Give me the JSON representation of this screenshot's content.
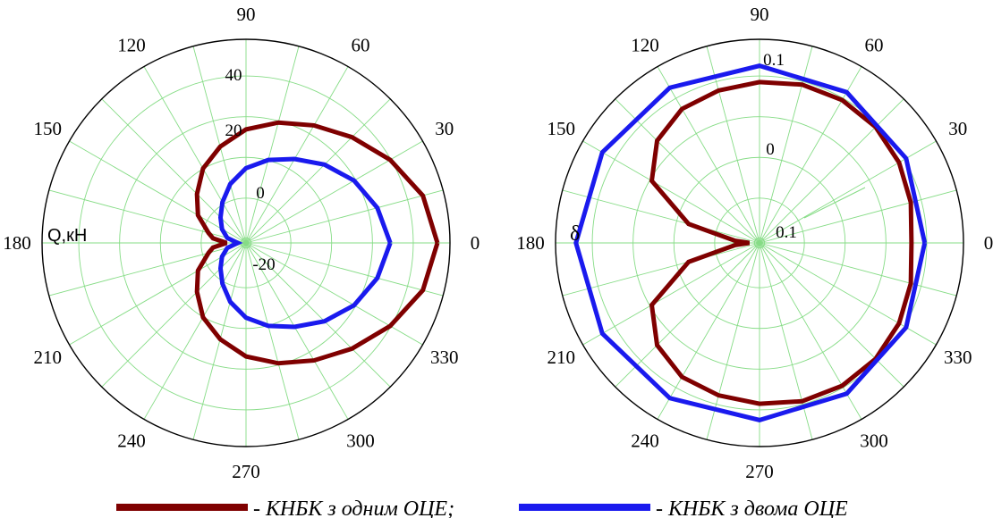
{
  "chart_data": [
    {
      "type": "line",
      "projection": "polar",
      "ylabel": "Q,кН",
      "angle_ticks": [
        "0",
        "30",
        "60",
        "90",
        "120",
        "150",
        "180",
        "210",
        "240",
        "270",
        "300",
        "330"
      ],
      "radial_tick_labels": [
        "-20",
        "0",
        "20",
        "40"
      ],
      "rlim": [
        -25,
        50
      ],
      "grid": true,
      "series": [
        {
          "name": "- КНБК з одним ОЦЕ;",
          "color": "#7f0000",
          "theta_deg": [
            0,
            15,
            30,
            45,
            60,
            75,
            90,
            105,
            120,
            135,
            150,
            165,
            172,
            180,
            188,
            195,
            210,
            225,
            240,
            255,
            270,
            285,
            300,
            315,
            330,
            345,
            360
          ],
          "r": [
            44,
            41,
            35,
            29,
            24,
            20,
            16,
            11,
            6,
            0,
            -5,
            -11,
            -13,
            -18,
            -13,
            -11,
            -5,
            0,
            6,
            11,
            16,
            20,
            24,
            29,
            35,
            41,
            44
          ]
        },
        {
          "name": "- КНБК з двома ОЦЕ",
          "color": "#1a1aee",
          "theta_deg": [
            0,
            15,
            30,
            45,
            60,
            75,
            90,
            105,
            120,
            135,
            150,
            165,
            180,
            195,
            210,
            225,
            240,
            255,
            270,
            285,
            300,
            315,
            330,
            345,
            360
          ],
          "r": [
            27,
            24,
            20,
            15,
            10,
            6,
            2,
            -3,
            -8,
            -12,
            -15,
            -18,
            -22,
            -18,
            -15,
            -12,
            -8,
            -3,
            2,
            6,
            10,
            15,
            20,
            24,
            27
          ]
        }
      ]
    },
    {
      "type": "line",
      "projection": "polar",
      "ylabel": "δ",
      "angle_ticks": [
        "0",
        "30",
        "60",
        "90",
        "120",
        "150",
        "180",
        "210",
        "240",
        "270",
        "300",
        "330"
      ],
      "radial_tick_labels": [
        "0.1",
        "0",
        "0.1"
      ],
      "grid": true,
      "series": [
        {
          "name": "- КНБК з одним ОЦЕ;",
          "color": "#7f0000",
          "theta_deg": [
            0,
            15,
            30,
            45,
            60,
            75,
            90,
            105,
            120,
            135,
            150,
            165,
            175,
            180,
            185,
            195,
            210,
            225,
            240,
            255,
            270,
            285,
            300,
            315,
            330,
            345,
            360
          ],
          "r_frac": [
            0.745,
            0.768,
            0.79,
            0.805,
            0.81,
            0.805,
            0.79,
            0.775,
            0.76,
            0.71,
            0.61,
            0.36,
            0.12,
            0.05,
            0.12,
            0.36,
            0.61,
            0.71,
            0.76,
            0.775,
            0.79,
            0.805,
            0.81,
            0.805,
            0.79,
            0.768,
            0.745
          ]
        },
        {
          "name": "- КНБК з двома ОЦЕ",
          "color": "#1a1aee",
          "theta_deg": [
            0,
            30,
            60,
            90,
            120,
            150,
            180,
            210,
            240,
            270,
            300,
            330,
            360
          ],
          "r_frac": [
            0.81,
            0.83,
            0.855,
            0.87,
            0.88,
            0.89,
            0.9,
            0.89,
            0.88,
            0.87,
            0.855,
            0.83,
            0.81
          ]
        }
      ]
    }
  ],
  "legend": {
    "placement": "bottom",
    "items": [
      {
        "label": "- КНБК з одним ОЦЕ;",
        "color": "#7f0000"
      },
      {
        "label": "- КНБК з двома ОЦЕ",
        "color": "#1a1aee"
      }
    ]
  }
}
